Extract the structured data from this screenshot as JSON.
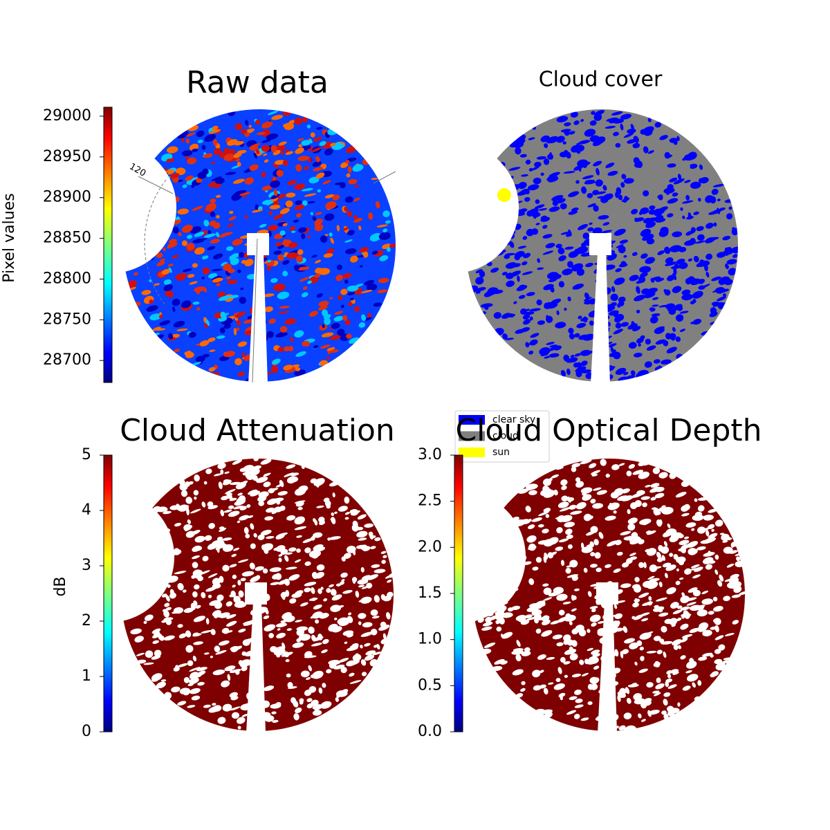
{
  "chart_data": [
    {
      "type": "image",
      "title": "Raw data",
      "colormap": "jet",
      "colorbar_label": "Pixel values",
      "clim": [
        28673,
        29011
      ],
      "cticks": [
        28700,
        28750,
        28800,
        28850,
        28900,
        28950,
        29000
      ],
      "annotation": "120"
    },
    {
      "type": "classification",
      "title": "Cloud cover",
      "series": [
        {
          "name": "clear sky",
          "color": "#0000ff"
        },
        {
          "name": "cloud",
          "color": "#808080"
        },
        {
          "name": "sun",
          "color": "#ffff00"
        }
      ]
    },
    {
      "type": "image",
      "title": "Cloud Attenuation",
      "colormap": "jet",
      "colorbar_label": "dB",
      "clim": [
        0,
        5
      ],
      "cticks": [
        0,
        1,
        2,
        3,
        4,
        5
      ]
    },
    {
      "type": "image",
      "title": "Cloud Optical Depth",
      "colormap": "jet",
      "clim": [
        0,
        3
      ],
      "cticks": [
        {
          "value": 0,
          "label": "0.0"
        },
        {
          "value": 0.5,
          "label": "0.5"
        },
        {
          "value": 1,
          "label": "1.0"
        },
        {
          "value": 1.5,
          "label": "1.5"
        },
        {
          "value": 2,
          "label": "2.0"
        },
        {
          "value": 2.5,
          "label": "2.5"
        },
        {
          "value": 3,
          "label": "3.0"
        }
      ]
    }
  ]
}
